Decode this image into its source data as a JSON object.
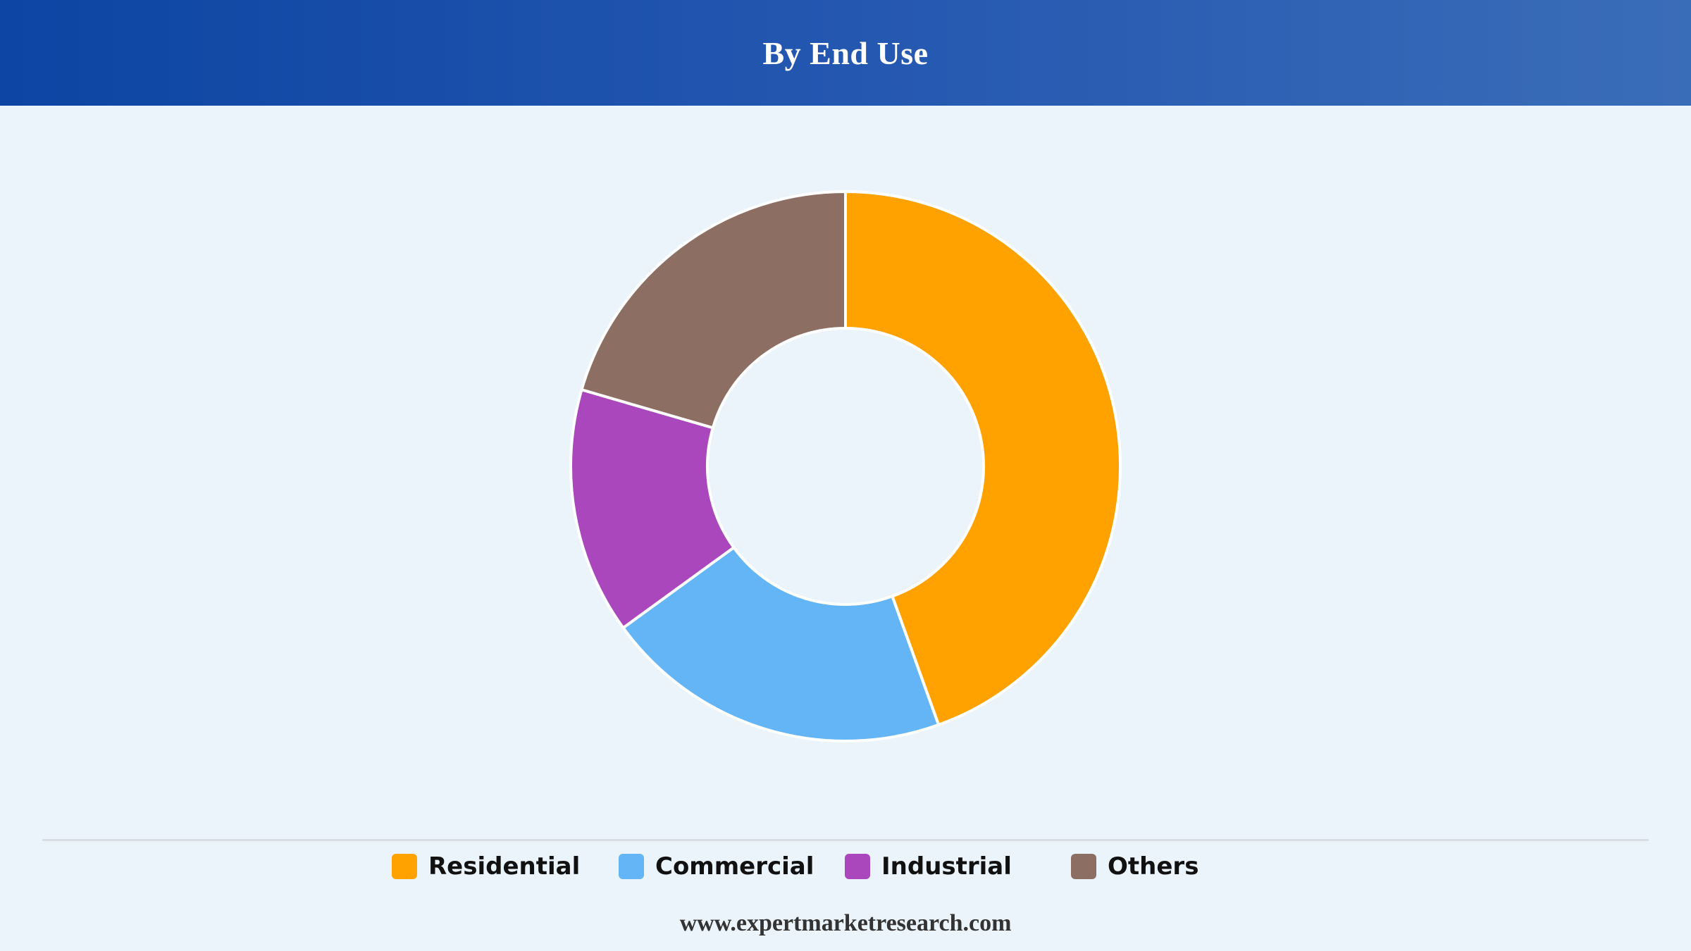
{
  "header": {
    "title": "By End Use"
  },
  "footer": {
    "url": "www.expertmarketresearch.com"
  },
  "colors": {
    "header_start": "#0c45a3",
    "header_end": "#3a6db8",
    "background": "#ebf3fb"
  },
  "chart_data": {
    "type": "pie",
    "style": "donut",
    "title": "By End Use",
    "legend": "bottom",
    "categories": [
      "Residential",
      "Commercial",
      "Industrial",
      "Others"
    ],
    "values": [
      44.5,
      20.5,
      14.5,
      20.5
    ],
    "colors": [
      "#ffa200",
      "#64b5f6",
      "#ab47bc",
      "#8d6e63"
    ]
  }
}
